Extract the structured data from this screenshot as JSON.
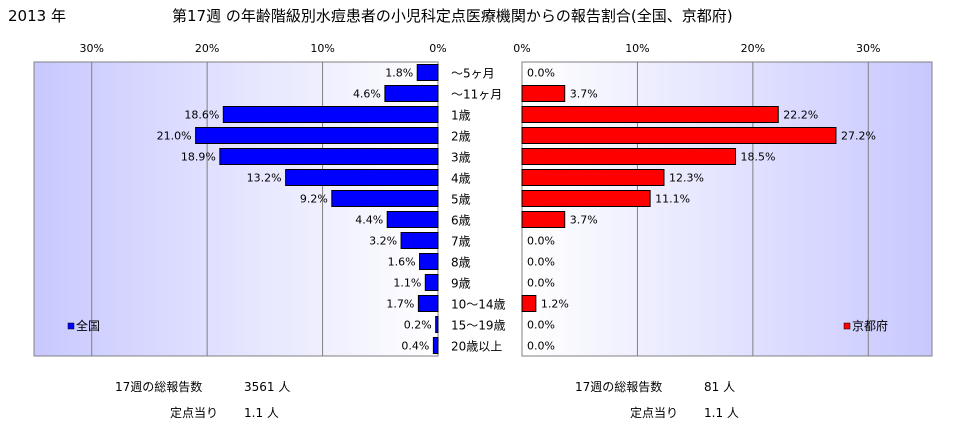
{
  "header": {
    "year": "2013 年",
    "title": "第17週 の年齢階級別水痘患者の小児科定点医療機関からの報告割合(全国、京都府)"
  },
  "chart_data": {
    "type": "bar",
    "orientation": "horizontal-butterfly",
    "categories": [
      "～5ヶ月",
      "～11ヶ月",
      "1歳",
      "2歳",
      "3歳",
      "4歳",
      "5歳",
      "6歳",
      "7歳",
      "8歳",
      "9歳",
      "10～14歳",
      "15～19歳",
      "20歳以上"
    ],
    "x_ticks": [
      "0%",
      "10%",
      "20%",
      "30%"
    ],
    "xlim": [
      0,
      35
    ],
    "grid": true,
    "series": [
      {
        "name": "全国",
        "side": "left",
        "color": "#0000ff",
        "values": [
          1.8,
          4.6,
          18.6,
          21.0,
          18.9,
          13.2,
          9.2,
          4.4,
          3.2,
          1.6,
          1.1,
          1.7,
          0.2,
          0.4
        ],
        "labels": [
          "1.8%",
          "4.6%",
          "18.6%",
          "21.0%",
          "18.9%",
          "13.2%",
          "9.2%",
          "4.4%",
          "3.2%",
          "1.6%",
          "1.1%",
          "1.7%",
          "0.2%",
          "0.4%"
        ],
        "legend_position": "bottom-left"
      },
      {
        "name": "京都府",
        "side": "right",
        "color": "#ff0000",
        "values": [
          0.0,
          3.7,
          22.2,
          27.2,
          18.5,
          12.3,
          11.1,
          3.7,
          0.0,
          0.0,
          0.0,
          1.2,
          0.0,
          0.0
        ],
        "labels": [
          "0.0%",
          "3.7%",
          "22.2%",
          "27.2%",
          "18.5%",
          "12.3%",
          "11.1%",
          "3.7%",
          "0.0%",
          "0.0%",
          "0.0%",
          "1.2%",
          "0.0%",
          "0.0%"
        ],
        "legend_position": "bottom-right"
      }
    ]
  },
  "footer": {
    "left": {
      "total_label": "17週の総報告数",
      "total_value": "3561 人",
      "per_label": "定点当り",
      "per_value": "1.1 人"
    },
    "right": {
      "total_label": "17週の総報告数",
      "total_value": "81 人",
      "per_label": "定点当り",
      "per_value": "1.1 人"
    }
  }
}
